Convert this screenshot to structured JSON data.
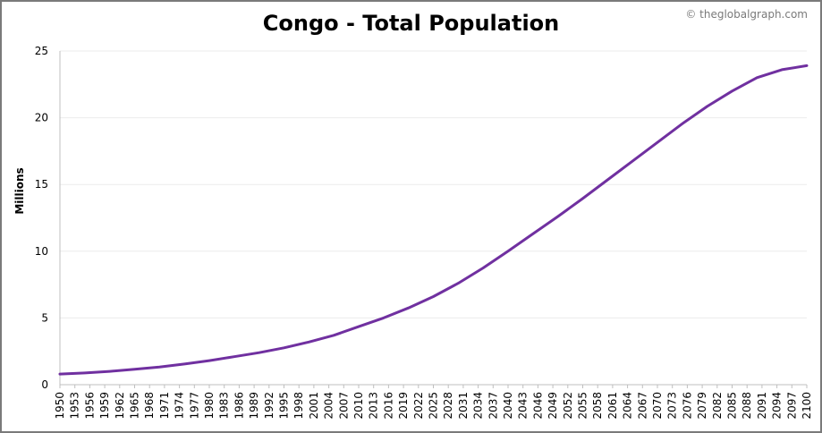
{
  "title": "Congo - Total Population",
  "credit": "© theglobalgraph.com",
  "chart_data": {
    "type": "line",
    "title": "Congo - Total Population",
    "xlabel": "",
    "ylabel": "Millions",
    "xlim": [
      1950,
      2100
    ],
    "ylim": [
      0,
      25
    ],
    "y_ticks": [
      0,
      5,
      10,
      15,
      20,
      25
    ],
    "x_ticks": [
      1950,
      1953,
      1956,
      1959,
      1962,
      1965,
      1968,
      1971,
      1974,
      1977,
      1980,
      1983,
      1986,
      1989,
      1992,
      1995,
      1998,
      2001,
      2004,
      2007,
      2010,
      2013,
      2016,
      2019,
      2022,
      2025,
      2028,
      2031,
      2034,
      2037,
      2040,
      2043,
      2046,
      2049,
      2052,
      2055,
      2058,
      2061,
      2064,
      2067,
      2070,
      2073,
      2076,
      2079,
      2082,
      2085,
      2088,
      2091,
      2094,
      2097,
      2100
    ],
    "grid": true,
    "line_color": "#7030a0",
    "series": [
      {
        "x": [
          1950,
          1955,
          1960,
          1965,
          1970,
          1975,
          1980,
          1985,
          1990,
          1995,
          2000,
          2005,
          2010,
          2015,
          2020,
          2025,
          2030,
          2035,
          2040,
          2045,
          2050,
          2055,
          2060,
          2065,
          2070,
          2075,
          2080,
          2085,
          2090,
          2095,
          2100
        ],
        "values": [
          0.8,
          0.88,
          1.0,
          1.15,
          1.33,
          1.55,
          1.8,
          2.1,
          2.4,
          2.76,
          3.2,
          3.7,
          4.35,
          5.0,
          5.75,
          6.6,
          7.6,
          8.75,
          10.0,
          11.3,
          12.6,
          13.95,
          15.35,
          16.75,
          18.15,
          19.55,
          20.85,
          22.0,
          23.0,
          23.6,
          23.9
        ]
      }
    ]
  }
}
